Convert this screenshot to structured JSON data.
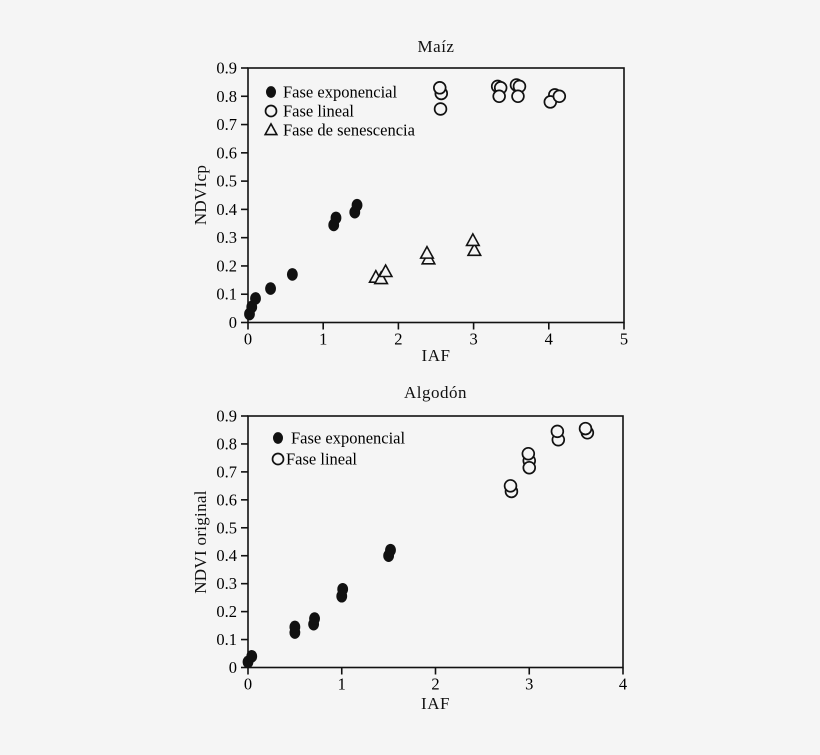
{
  "page": {
    "background": "#f5f5f5",
    "ink": "#111111"
  },
  "chart_data": [
    {
      "type": "scatter",
      "title": "Maíz",
      "xlabel": "IAF",
      "ylabel": "NDVIcp",
      "xlim": [
        0,
        5
      ],
      "ylim": [
        0,
        0.9
      ],
      "xticks": [
        0,
        1,
        2,
        3,
        4,
        5
      ],
      "yticks": [
        0,
        0.1,
        0.2,
        0.3,
        0.4,
        0.5,
        0.6,
        0.7,
        0.8,
        0.9
      ],
      "grid": false,
      "legend_position": "top-left-inside",
      "series": [
        {
          "name": "Fase exponencial",
          "marker": "filled-circle",
          "points": [
            [
              0.02,
              0.03
            ],
            [
              0.05,
              0.055
            ],
            [
              0.1,
              0.085
            ],
            [
              0.3,
              0.12
            ],
            [
              0.59,
              0.17
            ],
            [
              1.14,
              0.345
            ],
            [
              1.17,
              0.37
            ],
            [
              1.42,
              0.39
            ],
            [
              1.45,
              0.415
            ]
          ]
        },
        {
          "name": "Fase lineal",
          "marker": "open-circle",
          "points": [
            [
              2.57,
              0.81
            ],
            [
              2.55,
              0.83
            ],
            [
              2.56,
              0.755
            ],
            [
              3.32,
              0.835
            ],
            [
              3.36,
              0.83
            ],
            [
              3.34,
              0.8
            ],
            [
              3.57,
              0.84
            ],
            [
              3.61,
              0.835
            ],
            [
              3.59,
              0.8
            ],
            [
              4.08,
              0.805
            ],
            [
              4.02,
              0.78
            ],
            [
              4.14,
              0.8
            ]
          ]
        },
        {
          "name": "Fase de senescencia",
          "marker": "open-triangle",
          "points": [
            [
              1.7,
              0.16
            ],
            [
              1.77,
              0.155
            ],
            [
              1.83,
              0.18
            ],
            [
              2.4,
              0.225
            ],
            [
              2.38,
              0.245
            ],
            [
              3.01,
              0.255
            ],
            [
              2.99,
              0.29
            ]
          ]
        }
      ]
    },
    {
      "type": "scatter",
      "title": "Algodón",
      "xlabel": "IAF",
      "ylabel": "NDVI original",
      "xlim": [
        0,
        4
      ],
      "ylim": [
        0,
        0.9
      ],
      "xticks": [
        0,
        1,
        2,
        3,
        4
      ],
      "yticks": [
        0,
        0.1,
        0.2,
        0.3,
        0.4,
        0.5,
        0.6,
        0.7,
        0.8,
        0.9
      ],
      "grid": false,
      "legend_position": "top-left-inside",
      "series": [
        {
          "name": "Fase exponencial",
          "marker": "filled-circle",
          "points": [
            [
              0.0,
              0.02
            ],
            [
              0.04,
              0.04
            ],
            [
              0.5,
              0.125
            ],
            [
              0.5,
              0.145
            ],
            [
              0.7,
              0.155
            ],
            [
              0.71,
              0.175
            ],
            [
              1.0,
              0.255
            ],
            [
              1.01,
              0.28
            ],
            [
              1.5,
              0.4
            ],
            [
              1.52,
              0.42
            ]
          ]
        },
        {
          "name": "Fase lineal",
          "marker": "open-circle",
          "points": [
            [
              2.81,
              0.63
            ],
            [
              2.8,
              0.65
            ],
            [
              3.0,
              0.74
            ],
            [
              2.99,
              0.765
            ],
            [
              3.0,
              0.715
            ],
            [
              3.31,
              0.815
            ],
            [
              3.3,
              0.845
            ],
            [
              3.62,
              0.84
            ],
            [
              3.6,
              0.855
            ]
          ]
        }
      ]
    }
  ]
}
